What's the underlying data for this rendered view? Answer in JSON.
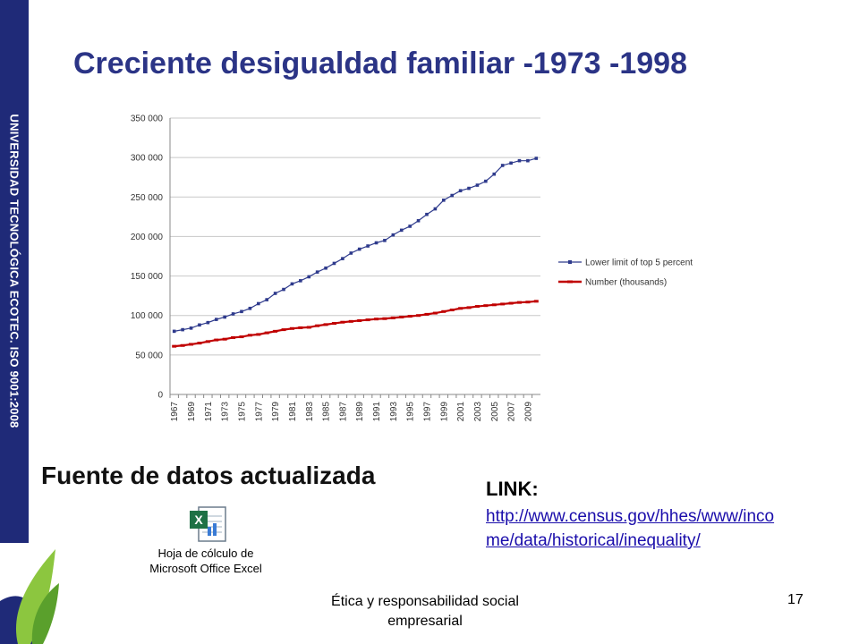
{
  "sidebar": {
    "text": "UNIVERSIDAD TECNOLÓGICA ECOTEC. ISO 9001:2008"
  },
  "slide": {
    "title": "Creciente desigualdad familiar -1973 -1998"
  },
  "subtitle": "Fuente de datos actualizada",
  "embedded_file": {
    "icon": "excel-spreadsheet-icon",
    "line1": "Hoja de cólculo de",
    "line2": "Microsoft Office Excel"
  },
  "link": {
    "label": "LINK:",
    "url_line1": "http://www.census.gov/hhes/www/inco",
    "url_line2": "me/data/historical/inequality/"
  },
  "footer": {
    "text": "Ética y responsabilidad social empresarial",
    "page": "17"
  },
  "colors": {
    "sidebar": "#1f2a78",
    "title": "#2b3486",
    "series1": "#2e3a8c",
    "series2": "#c00000"
  },
  "chart_data": {
    "type": "line",
    "title": "",
    "xlabel": "",
    "ylabel": "",
    "ylim": [
      0,
      350000
    ],
    "yticks": [
      0,
      50000,
      100000,
      150000,
      200000,
      250000,
      300000,
      350000
    ],
    "ytick_labels": [
      "0",
      "50 000",
      "100 000",
      "150 000",
      "200 000",
      "250 000",
      "300 000",
      "350 000"
    ],
    "x_start": 1967,
    "x_end": 2010,
    "xtick_labels": [
      "1967",
      "1969",
      "1971",
      "1973",
      "1975",
      "1977",
      "1979",
      "1981",
      "1983",
      "1985",
      "1987",
      "1989",
      "1991",
      "1993",
      "1995",
      "1997",
      "1999",
      "2001",
      "2003",
      "2005",
      "2007",
      "2009"
    ],
    "grid": true,
    "legend_position": "right",
    "series": [
      {
        "name": "Lower limit of top 5 percent",
        "color": "#2e3a8c",
        "marker": "square",
        "values": [
          80000,
          82000,
          84000,
          88000,
          91000,
          95000,
          98000,
          102000,
          105000,
          109000,
          115000,
          120000,
          128000,
          133000,
          140000,
          144000,
          149000,
          155000,
          160000,
          166000,
          172000,
          179000,
          184000,
          188000,
          192000,
          195000,
          202000,
          208000,
          213000,
          220000,
          228000,
          235000,
          246000,
          252000,
          258000,
          261000,
          265000,
          270000,
          279000,
          290000,
          293000,
          296000,
          296000,
          299000
        ]
      },
      {
        "name": "Number (thousands)",
        "color": "#c00000",
        "marker": "dash",
        "values": [
          61000,
          62000,
          63500,
          65000,
          67000,
          69000,
          70000,
          72000,
          73000,
          75000,
          76000,
          78000,
          80000,
          82000,
          83500,
          84500,
          85000,
          87000,
          88500,
          90000,
          91500,
          92500,
          93500,
          94500,
          95500,
          96000,
          97000,
          98000,
          99000,
          100000,
          101500,
          103000,
          105000,
          107000,
          109000,
          110000,
          111500,
          112500,
          113500,
          114500,
          115500,
          116500,
          117000,
          118000
        ]
      }
    ]
  }
}
